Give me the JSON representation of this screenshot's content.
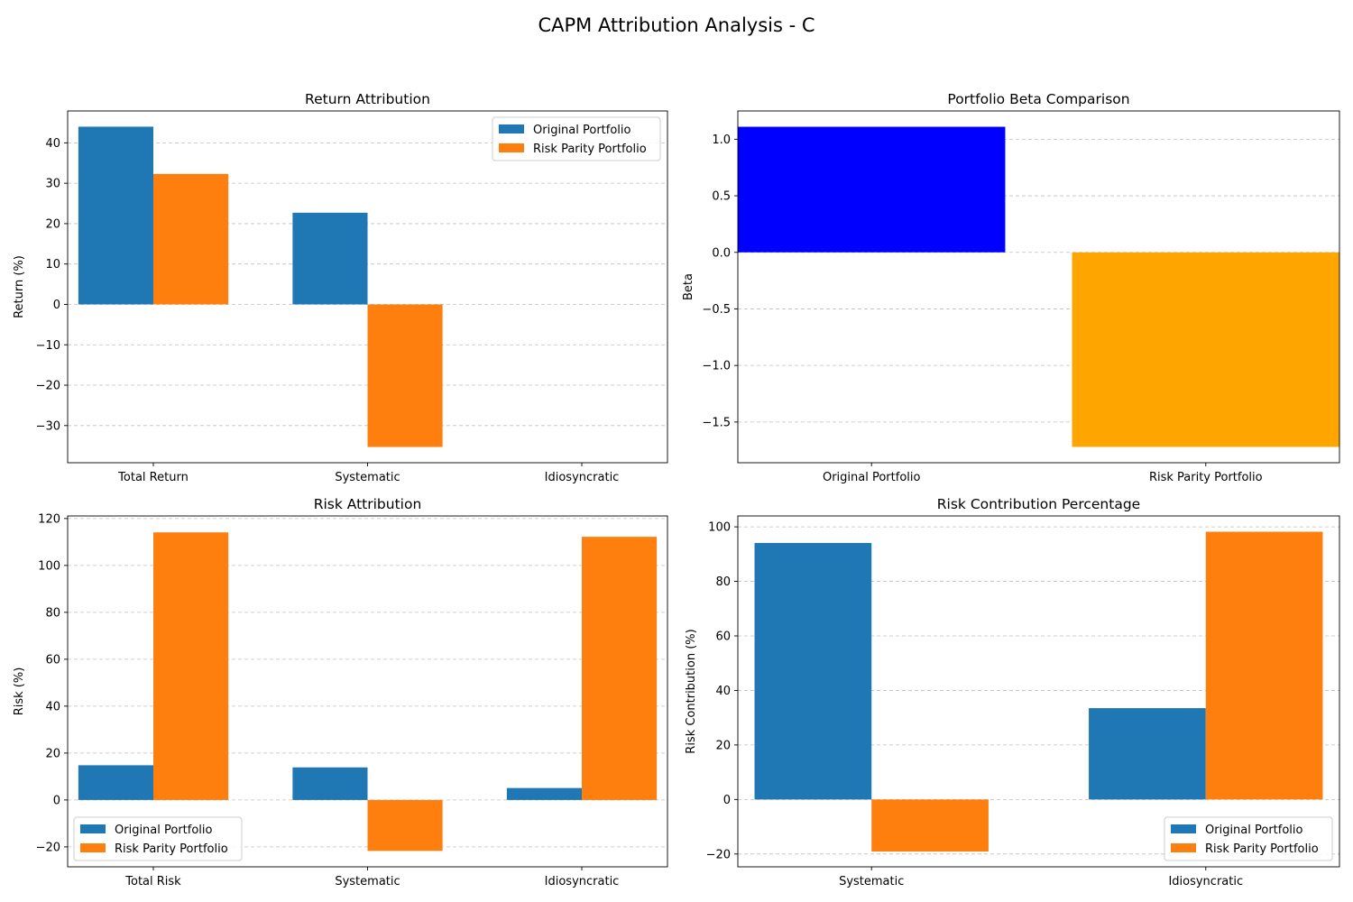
{
  "figure": {
    "title": "CAPM Attribution Analysis - C"
  },
  "colors": {
    "original": "#1f77b4",
    "risk_parity": "#ff7f0e",
    "beta_original": "#0000ff",
    "beta_risk_parity": "#ffa500",
    "grid": "#b0b0b0"
  },
  "chart_data": [
    {
      "id": "return",
      "type": "bar",
      "title": "Return Attribution",
      "xlabel": "",
      "ylabel": "Return (%)",
      "categories": [
        "Total Return",
        "Systematic",
        "Idiosyncratic"
      ],
      "series": [
        {
          "name": "Original Portfolio",
          "values": [
            44.0,
            22.7,
            0.0
          ]
        },
        {
          "name": "Risk Parity Portfolio",
          "values": [
            32.3,
            -35.3,
            0.0
          ]
        }
      ],
      "ylim": [
        -39.2,
        47.9
      ],
      "yticks": [
        -30,
        -20,
        -10,
        0,
        10,
        20,
        30,
        40
      ],
      "grid": "y dashed",
      "legend": "upper-right"
    },
    {
      "id": "beta",
      "type": "bar",
      "title": "Portfolio Beta Comparison",
      "xlabel": "",
      "ylabel": "Beta",
      "categories": [
        "Original Portfolio",
        "Risk Parity Portfolio"
      ],
      "values": [
        1.11,
        -1.72
      ],
      "ylim": [
        -1.86,
        1.25
      ],
      "yticks": [
        -1.5,
        -1.0,
        -0.5,
        0.0,
        0.5,
        1.0
      ],
      "tick_format": "1f",
      "grid": "y dashed",
      "legend": "none"
    },
    {
      "id": "risk",
      "type": "bar",
      "title": "Risk Attribution",
      "xlabel": "",
      "ylabel": "Risk (%)",
      "categories": [
        "Total Risk",
        "Systematic",
        "Idiosyncratic"
      ],
      "series": [
        {
          "name": "Original Portfolio",
          "values": [
            14.8,
            13.9,
            5.1
          ]
        },
        {
          "name": "Risk Parity Portfolio",
          "values": [
            114.1,
            -21.7,
            112.2
          ]
        }
      ],
      "ylim": [
        -28.5,
        121.1
      ],
      "yticks": [
        -20,
        0,
        20,
        40,
        60,
        80,
        100,
        120
      ],
      "grid": "y dashed",
      "legend": "lower-left"
    },
    {
      "id": "contribution",
      "type": "bar",
      "title": "Risk Contribution Percentage",
      "xlabel": "",
      "ylabel": "Risk Contribution (%)",
      "categories": [
        "Systematic",
        "Idiosyncratic"
      ],
      "series": [
        {
          "name": "Original Portfolio",
          "values": [
            94.1,
            33.5
          ]
        },
        {
          "name": "Risk Parity Portfolio",
          "values": [
            -19.1,
            98.2
          ]
        }
      ],
      "ylim": [
        -24.7,
        104.0
      ],
      "yticks": [
        -20,
        0,
        20,
        40,
        60,
        80,
        100
      ],
      "grid": "y dashed",
      "legend": "lower-right"
    }
  ]
}
